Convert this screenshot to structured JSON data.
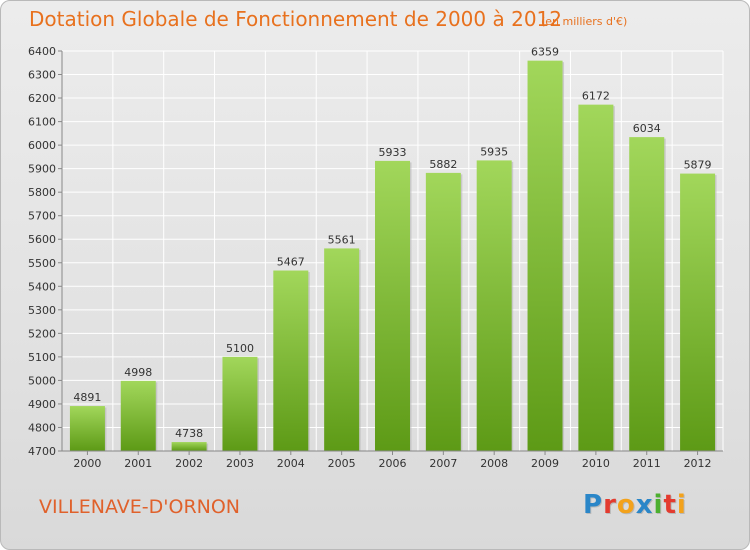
{
  "header": {
    "title": "Dotation Globale de Fonctionnement de 2000 à 2012",
    "unit": "(en milliers d'€)"
  },
  "footer": {
    "commune": "VILLENAVE-D'ORNON",
    "logo_letters": [
      "P",
      "r",
      "o",
      "x",
      "i",
      "t",
      "i"
    ],
    "logo_colors": [
      "#2a86c8",
      "#e33b2f",
      "#f3a21b",
      "#2a86c8",
      "#4caf2f",
      "#e33b2f",
      "#f3a21b"
    ]
  },
  "chart_data": {
    "type": "bar",
    "categories": [
      "2000",
      "2001",
      "2002",
      "2003",
      "2004",
      "2005",
      "2006",
      "2007",
      "2008",
      "2009",
      "2010",
      "2011",
      "2012"
    ],
    "values": [
      4891,
      4998,
      4738,
      5100,
      5467,
      5561,
      5933,
      5882,
      5935,
      6359,
      6172,
      6034,
      5879
    ],
    "title": "Dotation Globale de Fonctionnement de 2000 à 2012",
    "ylim": [
      4700,
      6400
    ],
    "yticks": [
      4700,
      4800,
      4900,
      5000,
      5100,
      5200,
      5300,
      5400,
      5500,
      5600,
      5700,
      5800,
      5900,
      6000,
      6100,
      6200,
      6300,
      6400
    ],
    "grid": true,
    "bar_color": "#7cc43a"
  }
}
